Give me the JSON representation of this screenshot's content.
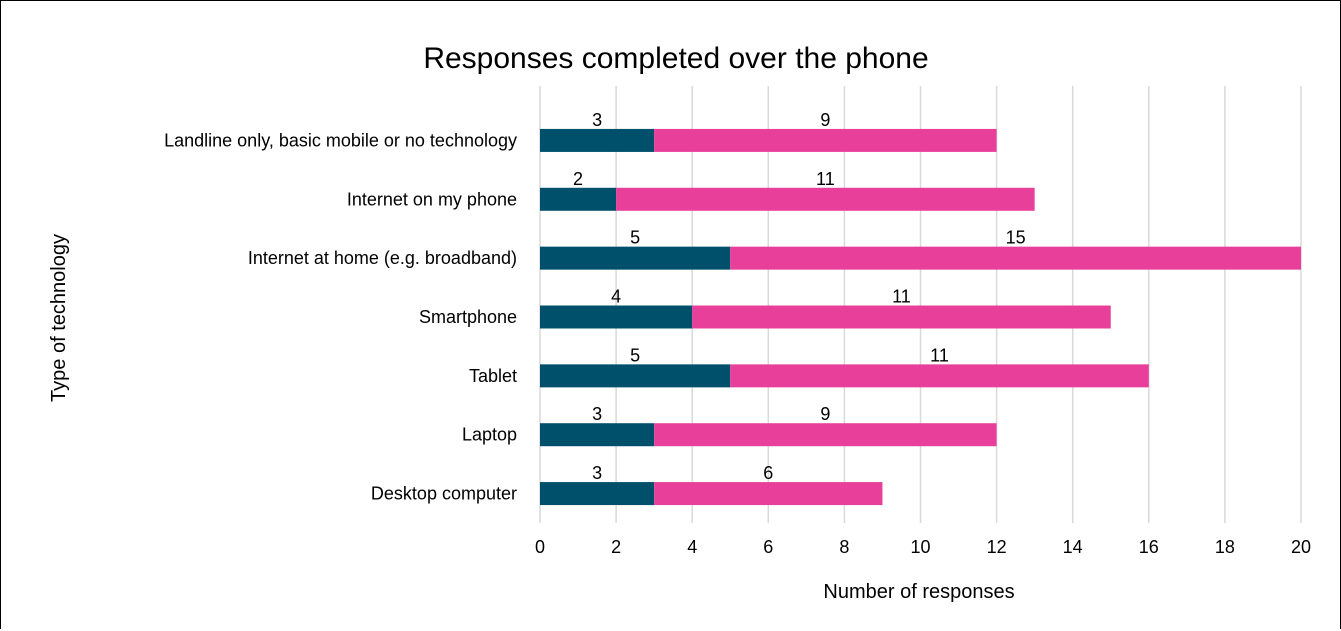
{
  "chart_data": {
    "type": "bar",
    "orientation": "horizontal",
    "stacked": true,
    "title": "Responses completed over the phone",
    "xlabel": "Number of responses",
    "ylabel": "Type of technology",
    "xlim": [
      0,
      20
    ],
    "xticks": [
      "0",
      "2",
      "4",
      "6",
      "8",
      "10",
      "12",
      "14",
      "16",
      "18",
      "20"
    ],
    "grid": true,
    "legend": "none",
    "categories": [
      "Landline only, basic mobile or no technology",
      "Internet on my phone",
      "Internet at home (e.g. broadband)",
      "Smartphone",
      "Tablet",
      "Laptop",
      "Desktop computer"
    ],
    "series": [
      {
        "values": [
          3,
          2,
          5,
          4,
          5,
          3,
          3
        ],
        "color": "#004f6b"
      },
      {
        "values": [
          9,
          11,
          15,
          11,
          11,
          9,
          6
        ],
        "color": "#e8409a"
      }
    ]
  }
}
